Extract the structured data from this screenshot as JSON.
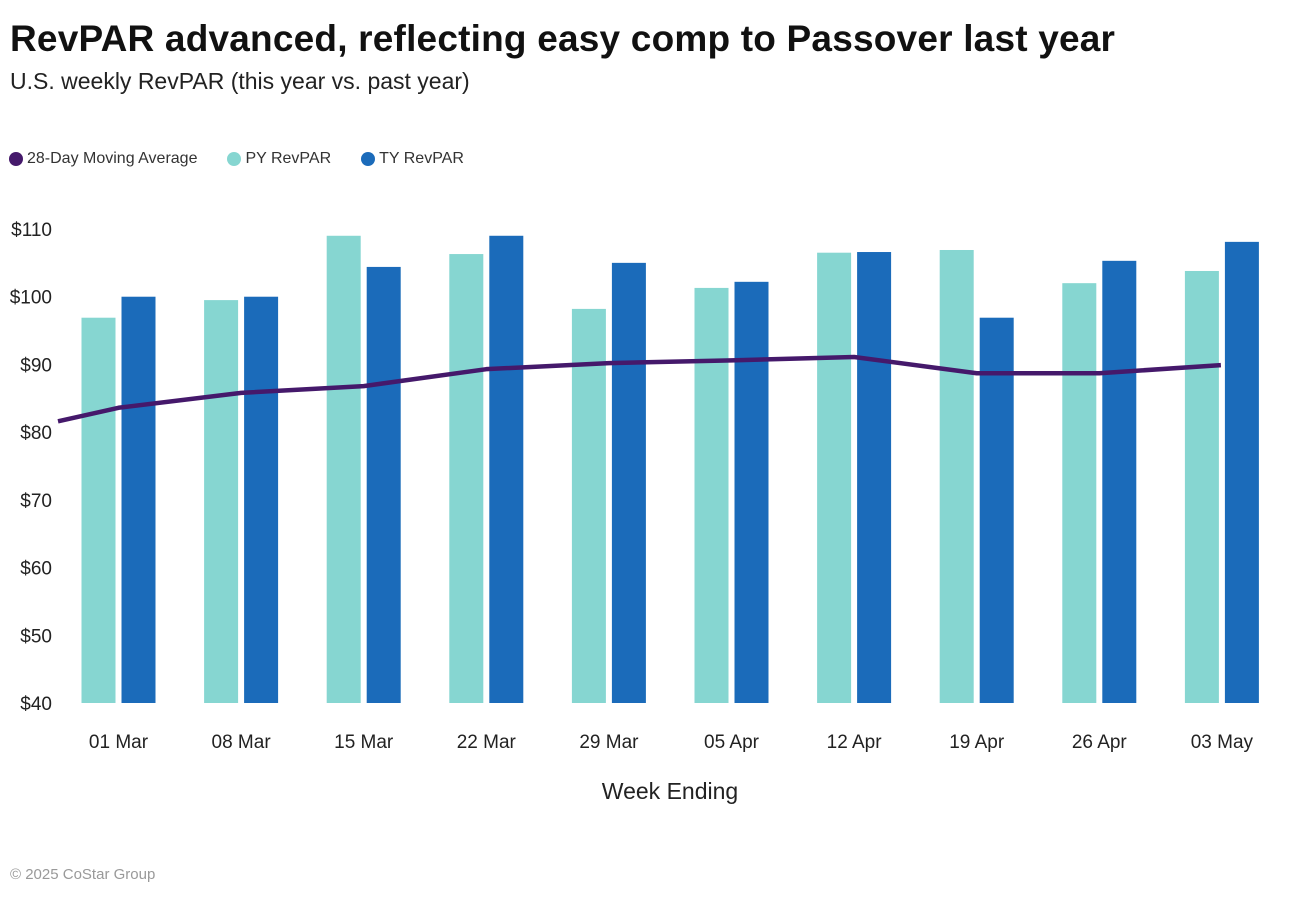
{
  "header": {
    "title": "RevPAR advanced, reflecting easy comp to Passover last year",
    "subtitle": "U.S. weekly RevPAR (this year vs. past year)"
  },
  "legend": [
    {
      "label": "28-Day Moving Average",
      "color": "#45196b"
    },
    {
      "label": "PY RevPAR",
      "color": "#86d6d1"
    },
    {
      "label": "TY RevPAR",
      "color": "#1b6bba"
    }
  ],
  "footer": "© 2025 CoStar Group",
  "chart_data": {
    "type": "bar",
    "title": "RevPAR advanced, reflecting easy comp to Passover last year",
    "subtitle": "U.S. weekly RevPAR (this year vs. past year)",
    "xlabel": "Week Ending",
    "ylabel": "",
    "ylim": [
      40,
      110
    ],
    "yticks": [
      40,
      50,
      60,
      70,
      80,
      90,
      100,
      110
    ],
    "ytick_labels": [
      "$40",
      "$50",
      "$60",
      "$70",
      "$80",
      "$90",
      "$100",
      "$110"
    ],
    "grid": false,
    "legend_position": "top-left",
    "categories": [
      "01 Mar",
      "08 Mar",
      "15 Mar",
      "22 Mar",
      "29 Mar",
      "05 Apr",
      "12 Apr",
      "19 Apr",
      "26 Apr",
      "03 May"
    ],
    "series": [
      {
        "name": "PY RevPAR",
        "type": "bar",
        "color": "#86d6d1",
        "values": [
          96.9,
          99.5,
          109.0,
          106.3,
          98.2,
          101.3,
          106.5,
          106.9,
          102.0,
          103.8
        ]
      },
      {
        "name": "TY RevPAR",
        "type": "bar",
        "color": "#1b6bba",
        "values": [
          100.0,
          100.0,
          104.4,
          109.0,
          105.0,
          102.2,
          106.6,
          96.9,
          105.3,
          108.1
        ]
      },
      {
        "name": "28-Day Moving Average",
        "type": "line",
        "color": "#45196b",
        "start_value": 81.6,
        "values": [
          83.6,
          85.8,
          86.8,
          89.3,
          90.2,
          90.6,
          91.1,
          88.7,
          88.7,
          89.9
        ]
      }
    ]
  }
}
